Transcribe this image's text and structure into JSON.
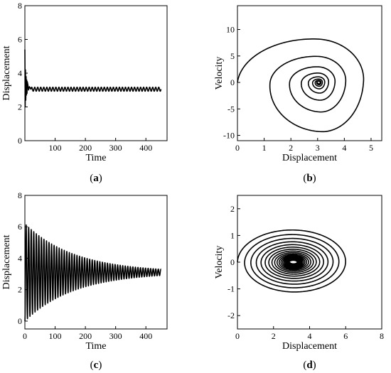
{
  "chart_data": [
    {
      "id": "a",
      "type": "line",
      "panel_label": "(a)",
      "xlabel": "Time",
      "ylabel": "Displacement",
      "xlim": [
        0,
        470
      ],
      "ylim": [
        0,
        8
      ],
      "xticks": [
        100,
        200,
        300,
        400
      ],
      "yticks": [
        0,
        2,
        4,
        6,
        8
      ],
      "series": [
        {
          "x": [
            0,
            1,
            2,
            3,
            4,
            5,
            6,
            7,
            8,
            10,
            12,
            15,
            20,
            450
          ],
          "y": [
            5.4,
            2.0,
            4.2,
            2.4,
            3.8,
            2.7,
            3.6,
            2.8,
            3.5,
            3.3,
            3.0,
            3.2,
            3.05,
            3.05
          ],
          "steady_state": 3.05,
          "steady_amplitude": 0.12,
          "oscillation_period": 10
        }
      ]
    },
    {
      "id": "b",
      "type": "line",
      "panel_label": "(b)",
      "xlabel": "Displacement",
      "ylabel": "Velocity",
      "xlim": [
        0,
        5.4
      ],
      "ylim": [
        -11,
        14.5
      ],
      "xticks": [
        0,
        1,
        2,
        3,
        4,
        5
      ],
      "yticks": [
        -10,
        -5,
        0,
        5,
        10
      ],
      "series": [
        {
          "center": [
            3.05,
            0
          ],
          "start": [
            0,
            0
          ],
          "peak_velocity": 13.6,
          "min_velocity": -9.3,
          "max_displacement": 5.2,
          "decay_per_turn": 0.6,
          "turns": 8
        }
      ]
    },
    {
      "id": "c",
      "type": "line",
      "panel_label": "(c)",
      "xlabel": "Time",
      "ylabel": "Displacement",
      "xlim": [
        0,
        470
      ],
      "ylim": [
        -0.5,
        8
      ],
      "xticks": [
        0,
        100,
        200,
        300,
        400
      ],
      "yticks": [
        0,
        2,
        4,
        6,
        8
      ],
      "series": [
        {
          "mean": 3.1,
          "initial_amplitude": 3.1,
          "final_amplitude": 0.2,
          "period": 8.4,
          "t_end": 450
        }
      ]
    },
    {
      "id": "d",
      "type": "line",
      "panel_label": "(d)",
      "xlabel": "Displacement",
      "ylabel": "Velocity",
      "xlim": [
        0,
        8
      ],
      "ylim": [
        -2.5,
        2.5
      ],
      "xticks": [
        0,
        2,
        4,
        6,
        8
      ],
      "yticks": [
        -2,
        -1,
        0,
        1,
        2
      ],
      "series": [
        {
          "center": [
            3.1,
            0
          ],
          "initial_radius_x": 3.1,
          "initial_radius_y": 1.25,
          "final_radius_x": 0.2,
          "final_radius_y": 0.06,
          "turns": 20
        }
      ]
    }
  ]
}
